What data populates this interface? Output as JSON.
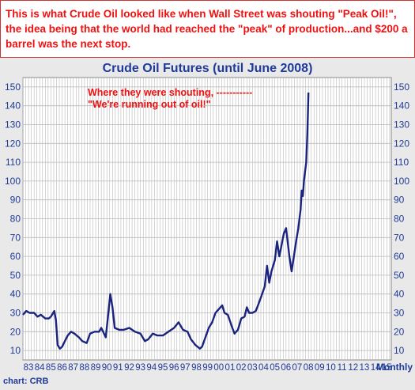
{
  "caption": "This is what Crude Oil looked like when Wall Street was shouting \"Peak Oil!\", the idea being that the world had reached the \"peak\" of production...and $200 a barrel was the next stop.",
  "source_credit": "chart: CRB",
  "colors": {
    "caption_text": "#ee1111",
    "title": "#1f3a99",
    "series_line": "#1a237e",
    "grid": "#b8b8b8",
    "annotation": "#ee1111",
    "axis_text": "#1f3a99"
  },
  "chart_data": {
    "type": "line",
    "title": "Crude Oil Futures (until June 2008)",
    "xlabel": "",
    "ylabel": "",
    "x_unit_label": "Monthly",
    "grid": true,
    "ylim": [
      5,
      155
    ],
    "y_ticks": [
      10,
      20,
      30,
      40,
      50,
      60,
      70,
      80,
      90,
      100,
      110,
      120,
      130,
      140,
      150
    ],
    "y_axis_sides": [
      "left",
      "right"
    ],
    "xlim": [
      1983,
      2015.9
    ],
    "x_ticks": [
      {
        "year": 1983,
        "label": "83"
      },
      {
        "year": 1984,
        "label": "84"
      },
      {
        "year": 1985,
        "label": "85"
      },
      {
        "year": 1986,
        "label": "86"
      },
      {
        "year": 1987,
        "label": "87"
      },
      {
        "year": 1988,
        "label": "88"
      },
      {
        "year": 1989,
        "label": "89"
      },
      {
        "year": 1990,
        "label": "90"
      },
      {
        "year": 1991,
        "label": "91"
      },
      {
        "year": 1992,
        "label": "92"
      },
      {
        "year": 1993,
        "label": "93"
      },
      {
        "year": 1994,
        "label": "94"
      },
      {
        "year": 1995,
        "label": "95"
      },
      {
        "year": 1996,
        "label": "96"
      },
      {
        "year": 1997,
        "label": "97"
      },
      {
        "year": 1998,
        "label": "98"
      },
      {
        "year": 1999,
        "label": "99"
      },
      {
        "year": 2000,
        "label": "00"
      },
      {
        "year": 2001,
        "label": "01"
      },
      {
        "year": 2002,
        "label": "02"
      },
      {
        "year": 2003,
        "label": "03"
      },
      {
        "year": 2004,
        "label": "04"
      },
      {
        "year": 2005,
        "label": "05"
      },
      {
        "year": 2006,
        "label": "06"
      },
      {
        "year": 2007,
        "label": "07"
      },
      {
        "year": 2008,
        "label": "08"
      },
      {
        "year": 2009,
        "label": "09"
      },
      {
        "year": 2010,
        "label": "10"
      },
      {
        "year": 2011,
        "label": "11"
      },
      {
        "year": 2012,
        "label": "12"
      },
      {
        "year": 2013,
        "label": "13"
      },
      {
        "year": 2014,
        "label": "14"
      },
      {
        "year": 2015,
        "label": "15"
      }
    ],
    "series": [
      {
        "x": [
          1983.0,
          1983.3,
          1983.6,
          1984.0,
          1984.3,
          1984.6,
          1985.0,
          1985.3,
          1985.5,
          1985.8,
          1985.95,
          1986.1,
          1986.3,
          1986.5,
          1986.75,
          1987.0,
          1987.3,
          1987.6,
          1988.0,
          1988.3,
          1988.7,
          1989.0,
          1989.4,
          1989.8,
          1990.0,
          1990.4,
          1990.6,
          1990.8,
          1991.0,
          1991.2,
          1991.6,
          1992.0,
          1992.5,
          1993.0,
          1993.5,
          1993.9,
          1994.2,
          1994.6,
          1995.0,
          1995.5,
          1996.0,
          1996.5,
          1996.9,
          1997.3,
          1997.7,
          1998.0,
          1998.4,
          1998.8,
          1999.0,
          1999.3,
          1999.6,
          1999.9,
          2000.2,
          2000.5,
          2000.8,
          2001.0,
          2001.3,
          2001.7,
          2001.9,
          2002.2,
          2002.5,
          2002.8,
          2003.0,
          2003.2,
          2003.5,
          2003.8,
          2004.0,
          2004.3,
          2004.6,
          2004.8,
          2005.0,
          2005.2,
          2005.5,
          2005.7,
          2005.9,
          2006.1,
          2006.3,
          2006.5,
          2006.8,
          2007.0,
          2007.2,
          2007.4,
          2007.6,
          2007.8,
          2007.9,
          2008.0,
          2008.1,
          2008.2,
          2008.3,
          2008.4,
          2008.45,
          2008.5
        ],
        "values": [
          29,
          31,
          30,
          30,
          28,
          29,
          27,
          27,
          28,
          31,
          26,
          13,
          11,
          12,
          15,
          18,
          20,
          19,
          17,
          15,
          14,
          19,
          20,
          20,
          22,
          17,
          28,
          40,
          33,
          22,
          21,
          21,
          22,
          20,
          19,
          15,
          16,
          19,
          18,
          18,
          20,
          22,
          25,
          21,
          20,
          16,
          13,
          11,
          12,
          17,
          22,
          25,
          30,
          32,
          34,
          30,
          29,
          22,
          19,
          21,
          27,
          28,
          33,
          30,
          30,
          31,
          34,
          39,
          44,
          55,
          46,
          52,
          58,
          68,
          60,
          66,
          72,
          75,
          60,
          52,
          60,
          68,
          75,
          85,
          95,
          92,
          100,
          105,
          110,
          125,
          135,
          147
        ]
      }
    ],
    "annotations": [
      {
        "text_lines": [
          "Where they were shouting,",
          "\"We're running out of oil!\""
        ],
        "dashes": "-----------",
        "target": {
          "x": 2008.5,
          "y": 147
        }
      }
    ]
  }
}
